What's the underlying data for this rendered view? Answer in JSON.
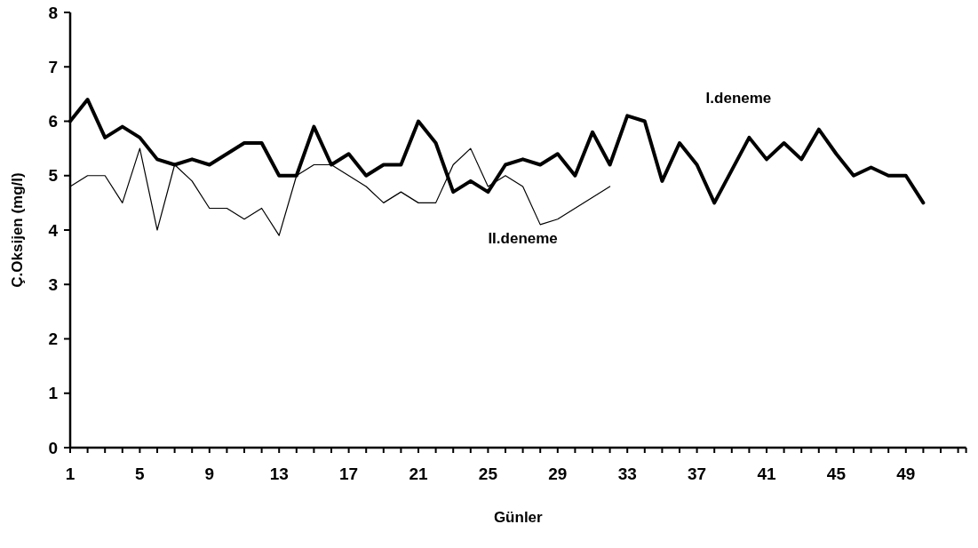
{
  "chart_data": {
    "type": "line",
    "xlabel": "Günler",
    "ylabel": "Ç.Oksijen (mg/l)",
    "categories": [
      "1",
      null,
      null,
      null,
      "5",
      null,
      null,
      null,
      "9",
      null,
      null,
      null,
      "13",
      null,
      null,
      null,
      "17",
      null,
      null,
      null,
      "21",
      null,
      null,
      null,
      "25",
      null,
      null,
      null,
      "29",
      null,
      null,
      null,
      "33",
      null,
      null,
      null,
      "37",
      null,
      null,
      null,
      "41",
      null,
      null,
      null,
      "45",
      null,
      null,
      null,
      "49",
      null,
      null,
      null
    ],
    "series": [
      {
        "name": "I.deneme",
        "color": "#000000",
        "values": [
          6.0,
          6.4,
          5.7,
          5.9,
          5.7,
          5.3,
          5.2,
          5.3,
          5.2,
          5.4,
          5.6,
          5.6,
          5.0,
          5.0,
          5.9,
          5.2,
          5.4,
          5.0,
          5.2,
          5.2,
          6.0,
          5.6,
          4.7,
          4.9,
          4.7,
          5.2,
          5.3,
          5.2,
          5.4,
          5.0,
          5.8,
          5.2,
          6.1,
          6.0,
          4.9,
          5.6,
          5.2,
          4.5,
          5.1,
          5.7,
          5.3,
          5.6,
          5.3,
          5.85,
          5.4,
          5.0,
          5.15,
          5.0,
          5.0,
          4.5,
          null,
          null
        ]
      },
      {
        "name": "II.deneme",
        "color": "#000000",
        "values": [
          4.8,
          5.0,
          5.0,
          4.5,
          5.5,
          4.0,
          5.2,
          4.9,
          4.4,
          4.4,
          4.2,
          4.4,
          3.9,
          5.0,
          5.2,
          5.2,
          5.0,
          4.8,
          4.5,
          4.7,
          4.5,
          4.5,
          5.2,
          5.5,
          4.8,
          5.0,
          4.8,
          4.1,
          4.2,
          4.4,
          4.6,
          4.8,
          null,
          null,
          null,
          null,
          null,
          null,
          null,
          null,
          null,
          null,
          null,
          null,
          null,
          null,
          null,
          null,
          null,
          null,
          null,
          null
        ]
      }
    ],
    "ylim": [
      0,
      8
    ],
    "yticks": [
      0,
      1,
      2,
      3,
      4,
      5,
      6,
      7,
      8
    ],
    "grid": false,
    "marker": "none",
    "line_style": "solid"
  }
}
